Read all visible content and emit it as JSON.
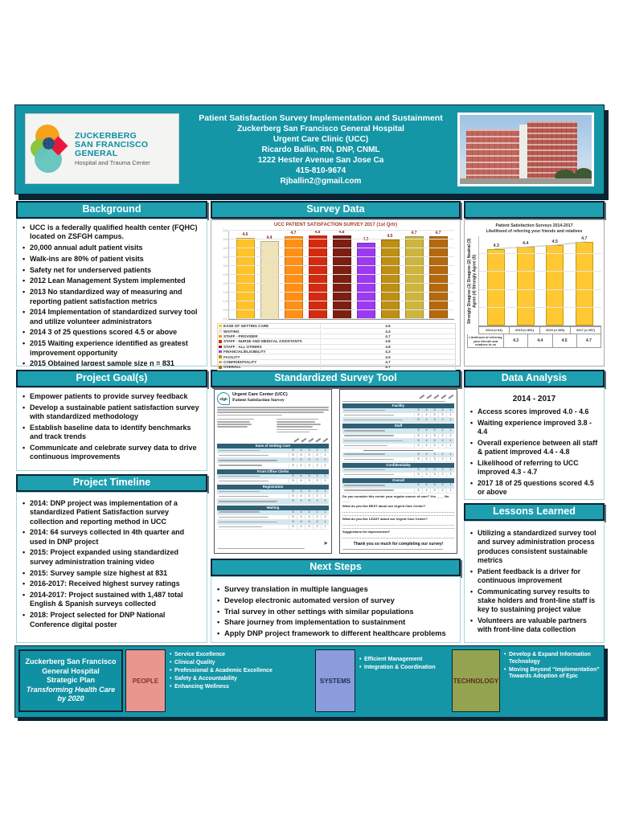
{
  "colors": {
    "teal_band": "#1496A7",
    "title_bar": "#1E9FB0",
    "dark_navy": "#0A2433",
    "chart2_bar": "#FFC832"
  },
  "header": {
    "logo": {
      "line1": "ZUCKERBERG",
      "line2": "SAN FRANCISCO GENERAL",
      "line3": "Hospital and Trauma Center"
    },
    "title_lines": [
      "Patient Satisfaction Survey Implementation and Sustainment",
      "Zuckerberg San Francisco General Hospital",
      "Urgent Care Clinic (UCC)",
      "Ricardo Ballin, RN, DNP, CNML",
      "1222 Hester Avenue San Jose Ca",
      "415-810-9674",
      "Rjballin2@gmail.com"
    ]
  },
  "background": {
    "title": "Background",
    "bullets": [
      "UCC is a federally qualified health center (FQHC) located on ZSFGH campus.",
      "20,000 annual adult patient visits",
      "Walk-ins are 80% of patient visits",
      "Safety net for underserved patients",
      "2012 Lean Management System implemented",
      "2013 No standardized way of measuring and reporting patient satisfaction metrics",
      "2014 Implementation of standardized survey tool and utilize volunteer administrators",
      "2014 3 of 25 questions scored 4.5 or above",
      "2015 Waiting experience identified as greatest improvement opportunity",
      "2015 Obtained largest sample size n = 831"
    ]
  },
  "goals": {
    "title": "Project Goal(s)",
    "bullets": [
      "Empower patients to provide survey feedback",
      "Develop a sustainable patient satisfaction survey with standardized methodology",
      "Establish baseline data to identify benchmarks and track trends",
      "Communicate and celebrate survey data to drive continuous improvements"
    ]
  },
  "timeline": {
    "title": "Project Timeline",
    "bullets": [
      "2014: DNP project was implementation of a standardized Patient Satisfaction survey collection and reporting method in UCC",
      "2014: 64 surveys collected in 4th quarter and used in DNP project",
      "2015: Project expanded using standardized survey administration training video",
      "2015: Survey sample size highest at 831",
      "2016-2017: Received highest survey ratings",
      "2014-2017: Project sustained with 1,487 total English & Spanish surveys collected",
      "2018: Project selected for DNP National Conference digital poster"
    ]
  },
  "survey_data": {
    "title": "Survey Data"
  },
  "chart_data": [
    {
      "type": "bar",
      "title": "UCC PATIENT SATISFACTION SURVEY 2017 (1st Qrtr)",
      "categories": [
        "EASE OF GETTING CARE",
        "WAITING",
        "STAFF - PROVIDER",
        "STAFF - NURSE AND MEDICAL ASSISTANTS",
        "STAFF - ALL OTHERS",
        "FINANCIAL/ELIGIBILITY",
        "FACILITY",
        "CONFIDENTIALITY",
        "OVERALL"
      ],
      "values": [
        4.6,
        4.4,
        4.7,
        4.8,
        4.8,
        4.3,
        4.5,
        4.7,
        4.7
      ],
      "bar_colors": [
        "#FFC327",
        "#EFE3B5",
        "#FF9015",
        "#D42A10",
        "#7C1E12",
        "#9B3AF0",
        "#BD8F12",
        "#CDB53E",
        "#B4690E"
      ],
      "xlabel": "",
      "ylabel": "",
      "ylim": [
        0,
        5
      ],
      "grid": true,
      "legend_position": "bottom-table"
    },
    {
      "type": "bar",
      "title": "Patient Satisfaction Surveys 2014-2017",
      "subtitle": "Likelihood of referring your friends and relatives",
      "ylabel": "Strongly Disagree (1) Disagree (2) Neutral (3) Agree (4) Strongly Agree (5)",
      "categories": [
        "2014 (n 64)",
        "2015 (n 831)",
        "2016 (n 335)",
        "2017 (n 257)"
      ],
      "series": [
        {
          "name": "Likelihood of referring your friends and relatives to us",
          "values": [
            4.3,
            4.4,
            4.5,
            4.7
          ]
        }
      ],
      "ylim": [
        0,
        5
      ],
      "grid": true,
      "trendline": true
    }
  ],
  "survey_tool": {
    "title": "Standardized Survey Tool",
    "form": {
      "clinic": "Urgent Care Center (UCC)",
      "form_title": "Patient Satisfaction Survey",
      "logo_text": "sfgh",
      "rating_scale": [
        "5",
        "4",
        "3",
        "2",
        "1"
      ],
      "left_sections": [
        {
          "name": "Ease of Getting Care",
          "rows": 4
        },
        {
          "name": "Front Office Clerks",
          "rows": 2
        },
        {
          "name": "Registration",
          "rows": 3
        },
        {
          "name": "Waiting",
          "rows": 4
        }
      ],
      "right_sections": [
        {
          "name": "Facility",
          "rows": 3
        },
        {
          "name": "Staff",
          "rows": 4,
          "sub_rows": 2
        },
        {
          "name": "Confidentiality",
          "rows": 2
        },
        {
          "name": "Overall",
          "rows": 2
        }
      ],
      "questions": [
        "Do you consider this center your regular source of care?  Yes ____   No ____",
        "What do you like BEST about our Urgent Care Center?",
        "What do you like LEAST about our Urgent Care Center?",
        "Suggestions for improvement?"
      ],
      "thanks": "Thank you so much for completing our survey!"
    }
  },
  "next_steps": {
    "title": "Next Steps",
    "bullets": [
      "Survey translation in multiple languages",
      "Develop electronic automated version of survey",
      "Trial survey in other settings with similar populations",
      "Share journey from implementation to sustainment",
      "Apply DNP project framework to different healthcare problems"
    ]
  },
  "data_analysis": {
    "title": "Data Analysis",
    "subtitle": "2014 - 2017",
    "bullets": [
      "Access scores improved 4.0 - 4.6",
      "Waiting experience improved 3.8 - 4.4",
      "Overall experience between all staff & patient improved 4.4 - 4.8",
      "Likelihood of referring to UCC improved 4.3 - 4.7",
      "2017 18 of 25 questions scored 4.5 or above"
    ]
  },
  "lessons_learned": {
    "title": "Lessons Learned",
    "bullets": [
      "Utilizing a standardized survey tool and survey administration process produces consistent sustainable metrics",
      "Patient feedback is a driver for continuous improvement",
      "Communicating survey results to stake holders and front-line staff is key to sustaining project value",
      "Volunteers are valuable partners with front-line data collection"
    ]
  },
  "strategic_plan": {
    "title_lines": [
      "Zuckerberg San Francisco",
      "General Hospital",
      "Strategic Plan"
    ],
    "tagline_lines": [
      "Transforming Health Care",
      "by 2020"
    ],
    "groups": [
      {
        "label": "PEOPLE",
        "color": "#E9968F",
        "label_color": "#8C2F2F",
        "items": [
          "Service Excellence",
          "Clinical Quality",
          "Professional & Academic Excellence",
          "Safety & Accountability",
          "Enhancing Wellness"
        ]
      },
      {
        "label": "SYSTEMS",
        "color": "#8B9CDC",
        "label_color": "#1F2A55",
        "items": [
          "Efficient Management",
          "Integration & Coordination"
        ]
      },
      {
        "label": "TECHNOLOGY",
        "color": "#93A34F",
        "label_color": "#5E2B1E",
        "items": [
          "Develop & Expand Information Technology",
          "Moving Beyond “Implementation” Towards Adoption of Epic"
        ]
      }
    ]
  }
}
